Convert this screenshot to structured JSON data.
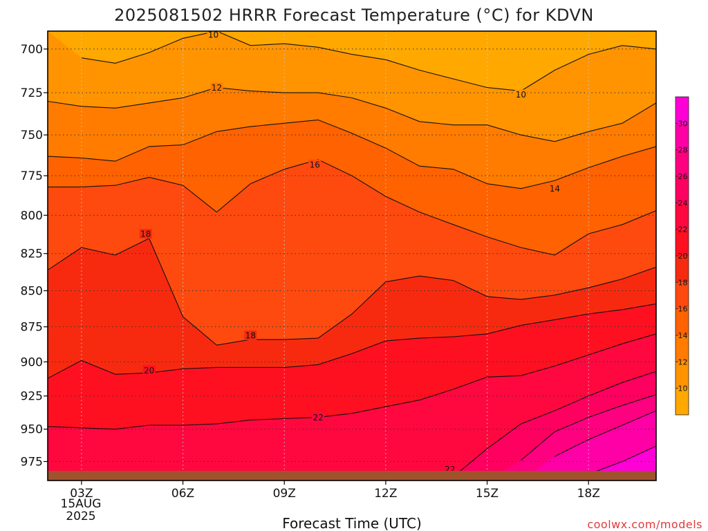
{
  "chart_data": {
    "type": "heatmap",
    "title": "2025081502 HRRR Forecast Temperature (°C) for KDVN",
    "xlabel": "Forecast Time (UTC)",
    "ylabel": "",
    "x_ticks": [
      "03Z",
      "06Z",
      "09Z",
      "12Z",
      "15Z",
      "18Z"
    ],
    "x_tick_hours": [
      3,
      6,
      9,
      12,
      15,
      18
    ],
    "x_date_lines": [
      "15AUG",
      "2025"
    ],
    "xlim": [
      2,
      20
    ],
    "y_ticks": [
      700,
      725,
      750,
      775,
      800,
      825,
      850,
      875,
      900,
      925,
      950,
      975
    ],
    "ylim": [
      690,
      990
    ],
    "y_scale": "log-pressure (inverted)",
    "grid": true,
    "x": [
      2,
      3,
      4,
      5,
      6,
      7,
      8,
      9,
      10,
      11,
      12,
      13,
      14,
      15,
      16,
      17,
      18,
      19,
      20
    ],
    "colorbar": {
      "levels": [
        8,
        10,
        12,
        14,
        16,
        18,
        20,
        22,
        24,
        26,
        28,
        30,
        32
      ],
      "tick_labels": [
        "10",
        "12",
        "14",
        "16",
        "18",
        "20",
        "22",
        "24",
        "26",
        "28",
        "30"
      ],
      "colors": [
        "#FFA800",
        "#FF9400",
        "#FF7C00",
        "#FF6200",
        "#FF4A0F",
        "#F72A10",
        "#FF1020",
        "#FF0840",
        "#FF0060",
        "#FF0080",
        "#FF00A6",
        "#FF00D6"
      ],
      "position": "right"
    },
    "series": [
      {
        "name": "10",
        "pressure": [
          null,
          705,
          708,
          702,
          694,
          690,
          698,
          697,
          699,
          703,
          706,
          712,
          717,
          722,
          724,
          712,
          703,
          698,
          700
        ]
      },
      {
        "name": "12",
        "pressure": [
          730,
          733,
          734,
          731,
          728,
          722,
          724,
          725,
          725,
          728,
          734,
          742,
          744,
          744,
          750,
          754,
          748,
          743,
          731
        ]
      },
      {
        "name": "14",
        "pressure": [
          763,
          764,
          766,
          757,
          756,
          748,
          745,
          743,
          741,
          749,
          758,
          769,
          771,
          780,
          783,
          778,
          770,
          763,
          757
        ]
      },
      {
        "name": "16",
        "pressure": [
          782,
          782,
          781,
          776,
          781,
          798,
          780,
          771,
          765,
          775,
          788,
          798,
          806,
          814,
          821,
          826,
          812,
          806,
          797
        ]
      },
      {
        "name": "18",
        "pressure": [
          836,
          821,
          826,
          815,
          868,
          888,
          884,
          884,
          883,
          866,
          844,
          840,
          843,
          854,
          856,
          853,
          848,
          842,
          834
        ]
      },
      {
        "name": "20",
        "pressure": [
          912,
          899,
          909,
          908,
          905,
          904,
          904,
          904,
          902,
          894,
          885,
          883,
          882,
          880,
          874,
          870,
          866,
          863,
          859
        ]
      },
      {
        "name": "22",
        "pressure": [
          948,
          949,
          950,
          947,
          947,
          946,
          943,
          942,
          941,
          938,
          933,
          928,
          920,
          911,
          910,
          903,
          895,
          887,
          880
        ]
      },
      {
        "name": "24",
        "pressure": [
          984,
          988,
          990,
          990,
          990,
          990,
          990,
          990,
          990,
          990,
          990,
          990,
          987,
          965,
          946,
          936,
          925,
          915,
          907
        ]
      },
      {
        "name": "26",
        "pressure": [
          990,
          990,
          990,
          990,
          990,
          990,
          990,
          990,
          990,
          990,
          990,
          990,
          990,
          990,
          974,
          952,
          941,
          932,
          924
        ]
      },
      {
        "name": "28",
        "pressure": [
          990,
          990,
          990,
          990,
          990,
          990,
          990,
          990,
          990,
          990,
          990,
          990,
          990,
          990,
          990,
          971,
          958,
          947,
          936
        ]
      },
      {
        "name": "30",
        "pressure": [
          990,
          990,
          990,
          990,
          990,
          990,
          990,
          990,
          990,
          990,
          990,
          990,
          990,
          990,
          990,
          990,
          985,
          975,
          963
        ]
      }
    ],
    "contour_labels": [
      {
        "text": "10",
        "x": 6.9,
        "p": 692
      },
      {
        "text": "10",
        "x": 16.0,
        "p": 726
      },
      {
        "text": "12",
        "x": 7.0,
        "p": 722
      },
      {
        "text": "14",
        "x": 17.0,
        "p": 783
      },
      {
        "text": "16",
        "x": 9.9,
        "p": 768
      },
      {
        "text": "18",
        "x": 4.9,
        "p": 812
      },
      {
        "text": "18",
        "x": 8.0,
        "p": 881
      },
      {
        "text": "20",
        "x": 5.0,
        "p": 906
      },
      {
        "text": "22",
        "x": 10.0,
        "p": 941
      },
      {
        "text": "22",
        "x": 13.9,
        "p": 981
      }
    ]
  },
  "credit": "coolwx.com/models"
}
